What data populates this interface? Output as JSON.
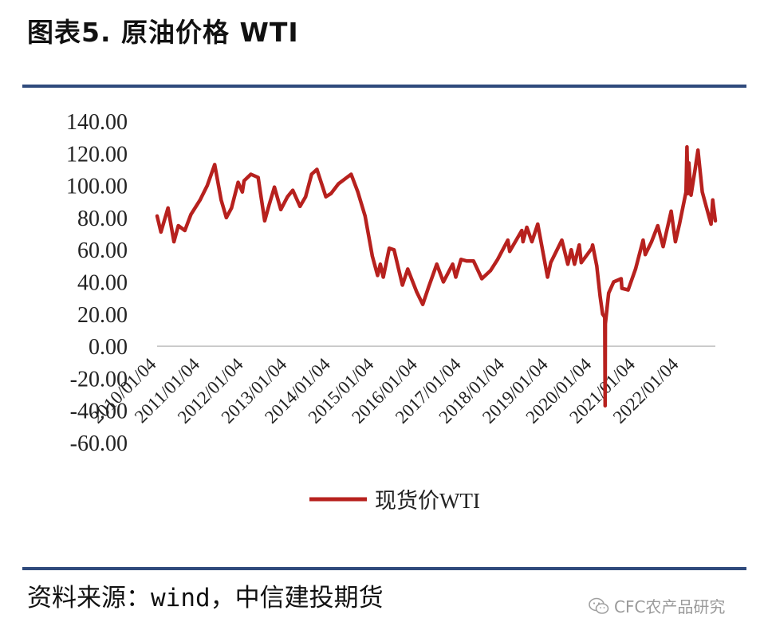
{
  "header": {
    "title": "图表5.  原油价格 WTI"
  },
  "footer": {
    "source": "资料来源：wind，中信建投期货"
  },
  "watermark": {
    "text": "CFC农产品研究",
    "icon": "wechat-icon"
  },
  "colors": {
    "series": "#b7211e",
    "rule": "#2f4a7c",
    "axis": "#bfbfbf"
  },
  "chart_data": {
    "type": "line",
    "title": "",
    "xlabel": "",
    "ylabel": "",
    "ylim": [
      -60,
      140
    ],
    "yticks": [
      "140.00",
      "120.00",
      "100.00",
      "80.00",
      "60.00",
      "40.00",
      "20.00",
      "0.00",
      "-20.00",
      "-40.00",
      "-60.00"
    ],
    "xticks": [
      "2010/01/04",
      "2011/01/04",
      "2012/01/04",
      "2013/01/04",
      "2014/01/04",
      "2015/01/04",
      "2016/01/04",
      "2017/01/04",
      "2018/01/04",
      "2019/01/04",
      "2020/01/04",
      "2021/01/04",
      "2022/01/04"
    ],
    "xlim": [
      "2010/01/04",
      "2022/11/01"
    ],
    "legend_position": "bottom-center",
    "grid": false,
    "series": [
      {
        "name": "现货价WTI",
        "color": "#b7211e",
        "points": [
          [
            "2010/01/04",
            81
          ],
          [
            "2010/02/05",
            71
          ],
          [
            "2010/04/06",
            86
          ],
          [
            "2010/05/25",
            65
          ],
          [
            "2010/07/01",
            75
          ],
          [
            "2010/08/25",
            72
          ],
          [
            "2010/10/15",
            82
          ],
          [
            "2010/12/31",
            91
          ],
          [
            "2011/03/01",
            100
          ],
          [
            "2011/05/02",
            113
          ],
          [
            "2011/06/25",
            91
          ],
          [
            "2011/08/08",
            80
          ],
          [
            "2011/09/20",
            86
          ],
          [
            "2011/11/15",
            102
          ],
          [
            "2011/12/20",
            96
          ],
          [
            "2012/01/04",
            103
          ],
          [
            "2012/03/01",
            107
          ],
          [
            "2012/05/01",
            105
          ],
          [
            "2012/06/25",
            78
          ],
          [
            "2012/08/01",
            88
          ],
          [
            "2012/09/14",
            99
          ],
          [
            "2012/11/07",
            85
          ],
          [
            "2013/01/02",
            93
          ],
          [
            "2013/02/15",
            97
          ],
          [
            "2013/04/17",
            87
          ],
          [
            "2013/06/03",
            93
          ],
          [
            "2013/07/23",
            107
          ],
          [
            "2013/09/06",
            110
          ],
          [
            "2013/11/20",
            93
          ],
          [
            "2014/01/02",
            95
          ],
          [
            "2014/03/05",
            101
          ],
          [
            "2014/06/20",
            107
          ],
          [
            "2014/08/15",
            96
          ],
          [
            "2014/10/15",
            81
          ],
          [
            "2014/12/15",
            56
          ],
          [
            "2015/01/28",
            44
          ],
          [
            "2015/02/20",
            51
          ],
          [
            "2015/03/17",
            43
          ],
          [
            "2015/05/06",
            61
          ],
          [
            "2015/06/15",
            60
          ],
          [
            "2015/08/24",
            38
          ],
          [
            "2015/10/08",
            48
          ],
          [
            "2015/12/21",
            34
          ],
          [
            "2016/02/11",
            26
          ],
          [
            "2016/04/01",
            37
          ],
          [
            "2016/06/08",
            51
          ],
          [
            "2016/08/02",
            40
          ],
          [
            "2016/10/19",
            51
          ],
          [
            "2016/11/14",
            43
          ],
          [
            "2016/12/28",
            54
          ],
          [
            "2017/02/15",
            53
          ],
          [
            "2017/04/12",
            53
          ],
          [
            "2017/06/21",
            42
          ],
          [
            "2017/09/01",
            47
          ],
          [
            "2017/10/31",
            54
          ],
          [
            "2018/01/25",
            66
          ],
          [
            "2018/02/09",
            59
          ],
          [
            "2018/05/22",
            72
          ],
          [
            "2018/06/01",
            65
          ],
          [
            "2018/07/03",
            74
          ],
          [
            "2018/08/15",
            65
          ],
          [
            "2018/10/03",
            76
          ],
          [
            "2018/12/24",
            43
          ],
          [
            "2019/01/20",
            52
          ],
          [
            "2019/04/23",
            66
          ],
          [
            "2019/06/12",
            51
          ],
          [
            "2019/07/11",
            60
          ],
          [
            "2019/08/07",
            51
          ],
          [
            "2019/09/16",
            63
          ],
          [
            "2019/10/03",
            52
          ],
          [
            "2019/12/31",
            61
          ],
          [
            "2020/01/06",
            63
          ],
          [
            "2020/02/10",
            50
          ],
          [
            "2020/03/09",
            31
          ],
          [
            "2020/03/30",
            20
          ],
          [
            "2020/04/17",
            18
          ],
          [
            "2020/04/20",
            -37
          ],
          [
            "2020/04/22",
            14
          ],
          [
            "2020/05/20",
            33
          ],
          [
            "2020/07/01",
            40
          ],
          [
            "2020/09/02",
            42
          ],
          [
            "2020/09/08",
            36
          ],
          [
            "2020/10/30",
            35
          ],
          [
            "2020/12/31",
            48
          ],
          [
            "2021/03/05",
            66
          ],
          [
            "2021/03/23",
            57
          ],
          [
            "2021/05/15",
            65
          ],
          [
            "2021/07/06",
            75
          ],
          [
            "2021/08/20",
            62
          ],
          [
            "2021/10/26",
            84
          ],
          [
            "2021/12/01",
            65
          ],
          [
            "2022/01/04",
            76
          ],
          [
            "2022/02/28",
            96
          ],
          [
            "2022/03/08",
            124
          ],
          [
            "2022/03/16",
            95
          ],
          [
            "2022/03/24",
            114
          ],
          [
            "2022/04/11",
            94
          ],
          [
            "2022/05/15",
            110
          ],
          [
            "2022/06/08",
            122
          ],
          [
            "2022/07/14",
            96
          ],
          [
            "2022/08/16",
            87
          ],
          [
            "2022/09/26",
            76
          ],
          [
            "2022/10/10",
            91
          ],
          [
            "2022/10/20",
            85
          ],
          [
            "2022/11/01",
            78
          ]
        ]
      }
    ]
  }
}
